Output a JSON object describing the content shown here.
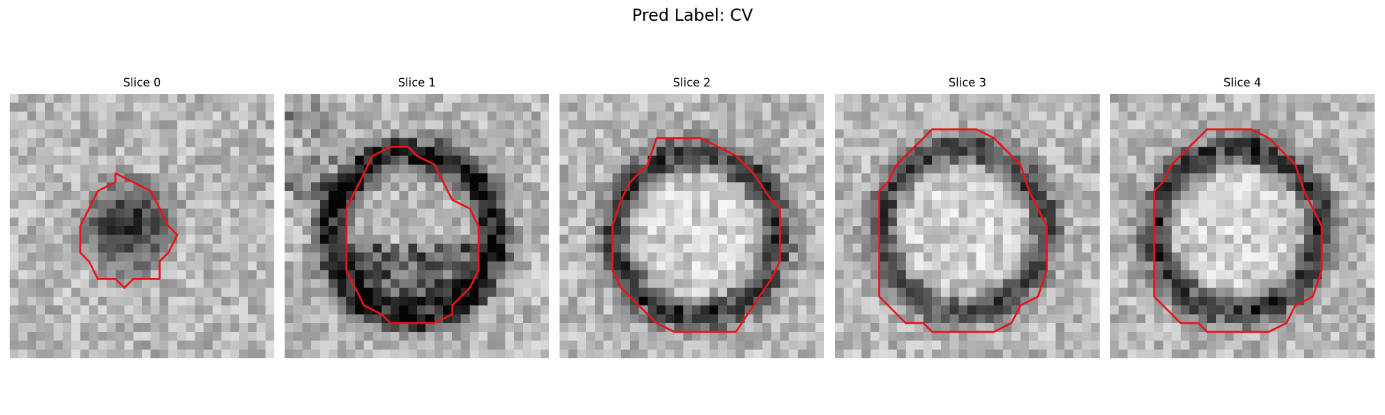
{
  "figure": {
    "title": "Pred Label: CV"
  },
  "contour_color": "#e8141a",
  "slices": [
    {
      "title": "Slice 0",
      "seed": 11,
      "ring_dark": 0.85,
      "ring_r": 0.0,
      "core": "dark"
    },
    {
      "title": "Slice 1",
      "seed": 23,
      "ring_dark": 0.75,
      "ring_r": 0.34,
      "core": "mixed"
    },
    {
      "title": "Slice 2",
      "seed": 37,
      "ring_dark": 0.55,
      "ring_r": 0.36,
      "core": "light"
    },
    {
      "title": "Slice 3",
      "seed": 41,
      "ring_dark": 0.5,
      "ring_r": 0.34,
      "core": "light"
    },
    {
      "title": "Slice 4",
      "seed": 53,
      "ring_dark": 0.55,
      "ring_r": 0.34,
      "core": "light"
    }
  ]
}
